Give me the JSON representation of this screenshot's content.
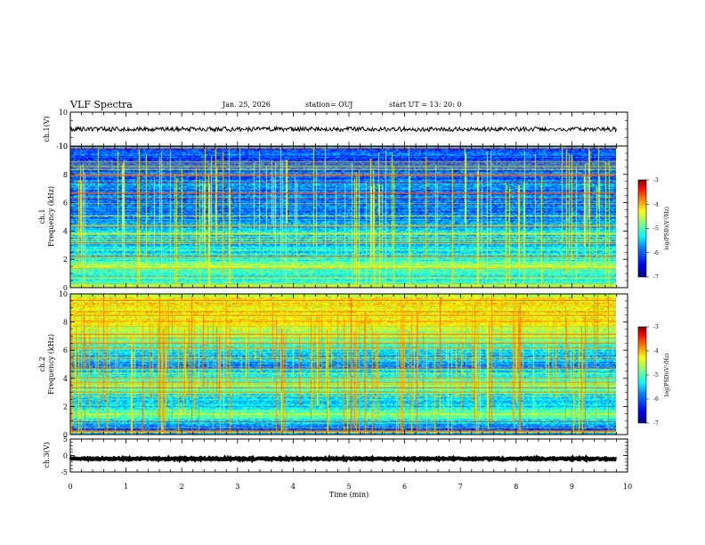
{
  "header": {
    "title": "VLF Spectra",
    "date": "Jan. 25, 2026",
    "station": "station= OUJ",
    "start": "start  UT =   13: 20: 0"
  },
  "colors": {
    "trace": "#000000",
    "colormap": [
      "#00007f",
      "#0000ff",
      "#007fff",
      "#00ffff",
      "#7fff7f",
      "#ffff00",
      "#ff7f00",
      "#ff0000",
      "#7f0000"
    ]
  },
  "chart_data": [
    {
      "type": "line",
      "id": "ch1-waveform",
      "ylabel": "ch.1(V)",
      "ylim": [
        -10,
        10
      ],
      "yticks": [
        "10",
        "-10"
      ],
      "x": [
        0,
        9.8
      ],
      "values": [
        0.0,
        0.0
      ],
      "note_visible": ""
    },
    {
      "type": "heatmap",
      "id": "ch1-spectrogram",
      "ylabel": "ch.1\nFrequency  (kHz)",
      "ylabel_lines": [
        "ch.1",
        "Frequency  (kHz)"
      ],
      "ylim": [
        0,
        10
      ],
      "yticks": [
        "0",
        "2",
        "4",
        "6",
        "8",
        "10"
      ],
      "xlim": [
        0,
        10
      ],
      "data_xmax": 9.8,
      "band_profile_kHz": [
        0,
        0.5,
        1.0,
        1.5,
        2.0,
        3.0,
        4.0,
        5.0,
        6.0,
        7.0,
        8.0,
        9.0,
        10.0
      ],
      "band_level_log_psd": [
        -4.6,
        -5.6,
        -5.3,
        -4.9,
        -5.4,
        -5.6,
        -5.7,
        -5.9,
        -6.0,
        -6.0,
        -6.1,
        -6.2,
        -6.2
      ],
      "colorbar": {
        "label": "log(PSD)(V²/Hz)",
        "range": [
          -7,
          -3
        ],
        "ticks": [
          "-3",
          "-4",
          "-5",
          "-6",
          "-7"
        ]
      }
    },
    {
      "type": "heatmap",
      "id": "ch2-spectrogram",
      "ylabel": "ch.2\nFrequency  (kHz)",
      "ylabel_lines": [
        "ch.2",
        "Frequency  (kHz)"
      ],
      "ylim": [
        0,
        10
      ],
      "yticks": [
        "0",
        "2",
        "4",
        "6",
        "8",
        "10"
      ],
      "xlim": [
        0,
        10
      ],
      "data_xmax": 9.8,
      "band_profile_kHz": [
        0,
        0.5,
        1.0,
        1.5,
        2.0,
        3.0,
        3.5,
        4.0,
        5.0,
        6.0,
        7.0,
        8.0,
        9.0,
        10.0
      ],
      "band_level_log_psd": [
        -5.8,
        -6.1,
        -5.5,
        -5.0,
        -5.7,
        -5.4,
        -4.8,
        -5.4,
        -5.9,
        -5.6,
        -4.9,
        -4.5,
        -4.4,
        -4.6
      ],
      "colorbar": {
        "label": "log(PSD)(V²/Hz)",
        "range": [
          -7,
          -3
        ],
        "ticks": [
          "-3",
          "-4",
          "-5",
          "-6",
          "-7"
        ]
      }
    },
    {
      "type": "line",
      "id": "ch3-waveform",
      "ylabel": "ch.3(V)",
      "ylim": [
        -5,
        5
      ],
      "yticks": [
        "5",
        "0",
        "-5"
      ],
      "x": [
        0,
        9.8
      ],
      "values": [
        -1.0,
        -1.0
      ],
      "xlabel": "Time  (min)",
      "xlim": [
        0,
        10
      ],
      "xticks": [
        "0",
        "1",
        "2",
        "3",
        "4",
        "5",
        "6",
        "7",
        "8",
        "9",
        "10"
      ]
    }
  ]
}
